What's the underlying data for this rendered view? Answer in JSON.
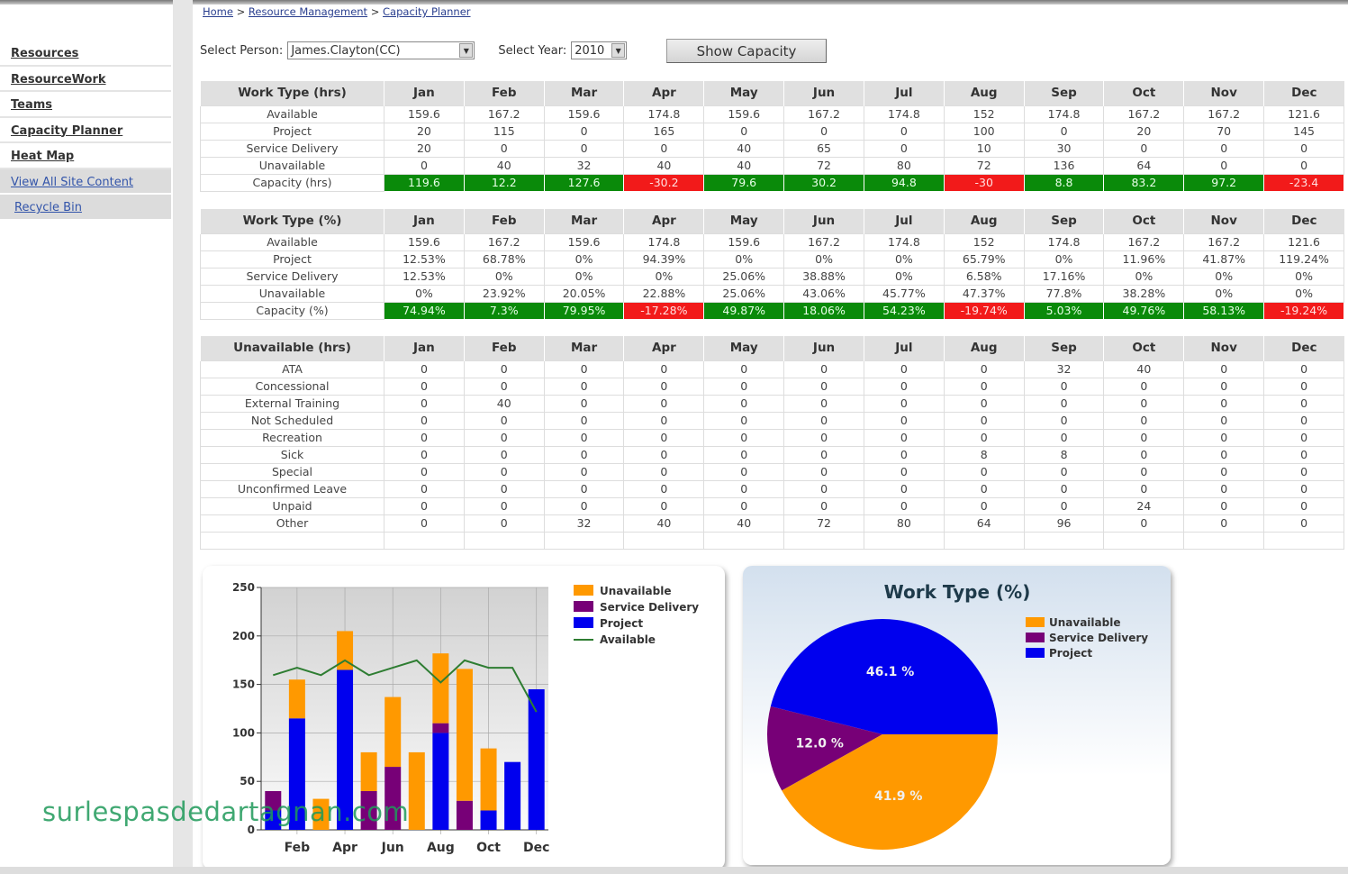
{
  "breadcrumb": {
    "items": [
      "Home",
      "Resource Management",
      "Capacity Planner"
    ],
    "separator": ">"
  },
  "sidebar": {
    "items": [
      {
        "label": "Resources"
      },
      {
        "label": "ResourceWork"
      },
      {
        "label": "Teams"
      },
      {
        "label": "Capacity Planner"
      },
      {
        "label": "Heat Map"
      },
      {
        "label": "View All Site Content"
      },
      {
        "label": "Recycle Bin"
      }
    ]
  },
  "filters": {
    "person_label": "Select Person:",
    "person_value": "James.Clayton(CC)",
    "year_label": "Select Year:",
    "year_value": "2010",
    "show_button": "Show Capacity"
  },
  "colors": {
    "positive": "#0a8a0a",
    "negative": "#f21a1a",
    "unavailable": "#ff9900",
    "service_delivery": "#770077",
    "project": "#0000ee",
    "available": "#2e7d32"
  },
  "months": [
    "Jan",
    "Feb",
    "Mar",
    "Apr",
    "May",
    "Jun",
    "Jul",
    "Aug",
    "Sep",
    "Oct",
    "Nov",
    "Dec"
  ],
  "tables": [
    {
      "header": "Work Type (hrs)",
      "rows": [
        {
          "label": "Available",
          "values": [
            "159.6",
            "167.2",
            "159.6",
            "174.8",
            "159.6",
            "167.2",
            "174.8",
            "152",
            "174.8",
            "167.2",
            "167.2",
            "121.6"
          ]
        },
        {
          "label": "Project",
          "values": [
            "20",
            "115",
            "0",
            "165",
            "0",
            "0",
            "0",
            "100",
            "0",
            "20",
            "70",
            "145"
          ]
        },
        {
          "label": "Service Delivery",
          "values": [
            "20",
            "0",
            "0",
            "0",
            "40",
            "65",
            "0",
            "10",
            "30",
            "0",
            "0",
            "0"
          ]
        },
        {
          "label": "Unavailable",
          "values": [
            "0",
            "40",
            "32",
            "40",
            "40",
            "72",
            "80",
            "72",
            "136",
            "64",
            "0",
            "0"
          ]
        },
        {
          "label": "Capacity (hrs)",
          "capacity": true,
          "values": [
            "119.6",
            "12.2",
            "127.6",
            "-30.2",
            "79.6",
            "30.2",
            "94.8",
            "-30",
            "8.8",
            "83.2",
            "97.2",
            "-23.4"
          ]
        }
      ]
    },
    {
      "header": "Work Type (%)",
      "rows": [
        {
          "label": "Available",
          "values": [
            "159.6",
            "167.2",
            "159.6",
            "174.8",
            "159.6",
            "167.2",
            "174.8",
            "152",
            "174.8",
            "167.2",
            "167.2",
            "121.6"
          ]
        },
        {
          "label": "Project",
          "values": [
            "12.53%",
            "68.78%",
            "0%",
            "94.39%",
            "0%",
            "0%",
            "0%",
            "65.79%",
            "0%",
            "11.96%",
            "41.87%",
            "119.24%"
          ]
        },
        {
          "label": "Service Delivery",
          "values": [
            "12.53%",
            "0%",
            "0%",
            "0%",
            "25.06%",
            "38.88%",
            "0%",
            "6.58%",
            "17.16%",
            "0%",
            "0%",
            "0%"
          ]
        },
        {
          "label": "Unavailable",
          "values": [
            "0%",
            "23.92%",
            "20.05%",
            "22.88%",
            "25.06%",
            "43.06%",
            "45.77%",
            "47.37%",
            "77.8%",
            "38.28%",
            "0%",
            "0%"
          ]
        },
        {
          "label": "Capacity (%)",
          "capacity": true,
          "values": [
            "74.94%",
            "7.3%",
            "79.95%",
            "-17.28%",
            "49.87%",
            "18.06%",
            "54.23%",
            "-19.74%",
            "5.03%",
            "49.76%",
            "58.13%",
            "-19.24%"
          ]
        }
      ]
    },
    {
      "header": "Unavailable (hrs)",
      "rows": [
        {
          "label": "ATA",
          "values": [
            "0",
            "0",
            "0",
            "0",
            "0",
            "0",
            "0",
            "0",
            "32",
            "40",
            "0",
            "0"
          ]
        },
        {
          "label": "Concessional",
          "values": [
            "0",
            "0",
            "0",
            "0",
            "0",
            "0",
            "0",
            "0",
            "0",
            "0",
            "0",
            "0"
          ]
        },
        {
          "label": "External Training",
          "values": [
            "0",
            "40",
            "0",
            "0",
            "0",
            "0",
            "0",
            "0",
            "0",
            "0",
            "0",
            "0"
          ]
        },
        {
          "label": "Not Scheduled",
          "values": [
            "0",
            "0",
            "0",
            "0",
            "0",
            "0",
            "0",
            "0",
            "0",
            "0",
            "0",
            "0"
          ]
        },
        {
          "label": "Recreation",
          "values": [
            "0",
            "0",
            "0",
            "0",
            "0",
            "0",
            "0",
            "0",
            "0",
            "0",
            "0",
            "0"
          ]
        },
        {
          "label": "Sick",
          "values": [
            "0",
            "0",
            "0",
            "0",
            "0",
            "0",
            "0",
            "8",
            "8",
            "0",
            "0",
            "0"
          ]
        },
        {
          "label": "Special",
          "values": [
            "0",
            "0",
            "0",
            "0",
            "0",
            "0",
            "0",
            "0",
            "0",
            "0",
            "0",
            "0"
          ]
        },
        {
          "label": "Unconfirmed Leave",
          "values": [
            "0",
            "0",
            "0",
            "0",
            "0",
            "0",
            "0",
            "0",
            "0",
            "0",
            "0",
            "0"
          ]
        },
        {
          "label": "Unpaid",
          "values": [
            "0",
            "0",
            "0",
            "0",
            "0",
            "0",
            "0",
            "0",
            "0",
            "24",
            "0",
            "0"
          ]
        },
        {
          "label": "Other",
          "values": [
            "0",
            "0",
            "32",
            "40",
            "40",
            "72",
            "80",
            "64",
            "96",
            "0",
            "0",
            "0"
          ]
        },
        {
          "label": "",
          "values": [
            "",
            "",
            "",
            "",
            "",
            "",
            "",
            "",
            "",
            "",
            "",
            ""
          ]
        }
      ]
    }
  ],
  "chart_data": [
    {
      "type": "bar",
      "stacked": true,
      "categories": [
        "Jan",
        "Feb",
        "Mar",
        "Apr",
        "May",
        "Jun",
        "Jul",
        "Aug",
        "Sep",
        "Oct",
        "Nov",
        "Dec"
      ],
      "tick_labels": [
        "Feb",
        "Apr",
        "Jun",
        "Aug",
        "Oct",
        "Dec"
      ],
      "ylim": [
        0,
        250
      ],
      "yticks": [
        0,
        50,
        100,
        150,
        200,
        250
      ],
      "grid": true,
      "legend": "right",
      "series": [
        {
          "name": "Project",
          "kind": "bar",
          "color": "#0000ee",
          "values": [
            20,
            115,
            0,
            165,
            0,
            0,
            0,
            100,
            0,
            20,
            70,
            145
          ]
        },
        {
          "name": "Service Delivery",
          "kind": "bar",
          "color": "#770077",
          "values": [
            20,
            0,
            0,
            0,
            40,
            65,
            0,
            10,
            30,
            0,
            0,
            0
          ]
        },
        {
          "name": "Unavailable",
          "kind": "bar",
          "color": "#ff9900",
          "values": [
            0,
            40,
            32,
            40,
            40,
            72,
            80,
            72,
            136,
            64,
            0,
            0
          ]
        },
        {
          "name": "Available",
          "kind": "line",
          "color": "#2e7d32",
          "values": [
            159.6,
            167.2,
            159.6,
            174.8,
            159.6,
            167.2,
            174.8,
            152,
            174.8,
            167.2,
            167.2,
            121.6
          ]
        }
      ],
      "legend_order": [
        "Unavailable",
        "Service Delivery",
        "Project",
        "Available"
      ]
    },
    {
      "type": "pie",
      "title": "Work Type (%)",
      "legend": "right",
      "slices": [
        {
          "name": "Project",
          "value": 46.1,
          "label": "46.1 %",
          "color": "#0000ee"
        },
        {
          "name": "Service Delivery",
          "value": 12.0,
          "label": "12.0 %",
          "color": "#770077"
        },
        {
          "name": "Unavailable",
          "value": 41.9,
          "label": "41.9 %",
          "color": "#ff9900"
        }
      ],
      "legend_order": [
        "Unavailable",
        "Service Delivery",
        "Project"
      ]
    }
  ],
  "watermark": "surlespasdedartagnan.com"
}
